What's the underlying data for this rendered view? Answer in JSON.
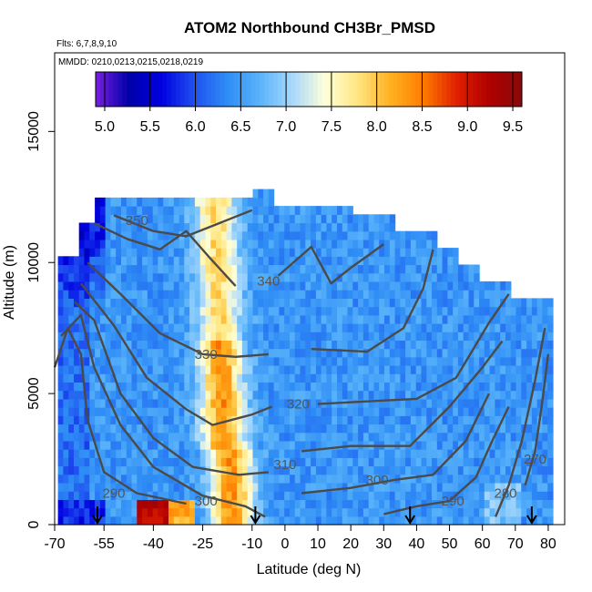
{
  "chart_data": {
    "type": "heatmap",
    "title": "ATOM2 Northbound CH3Br_PMSD",
    "notes": [
      "Flts: 6,7,8,9,10",
      "MMDD: 0210,0213,0215,0218,0219"
    ],
    "xlabel": "Latitude (deg N)",
    "ylabel": "Altitude (m)",
    "xlim": [
      -70,
      85
    ],
    "ylim": [
      0,
      18000
    ],
    "xticks": [
      -70,
      -55,
      -40,
      -25,
      -10,
      0,
      10,
      20,
      30,
      40,
      50,
      60,
      70,
      80
    ],
    "xtick_labels": [
      "-70",
      "-55",
      "-40",
      "-25",
      "-10",
      "0",
      "10",
      "20",
      "30",
      "40",
      "50",
      "60",
      "70",
      "80"
    ],
    "yticks": [
      0,
      5000,
      10000,
      15000
    ],
    "ytick_labels": [
      "0",
      "5000",
      "10000",
      "15000"
    ],
    "colorbar": {
      "range": [
        4.9,
        9.6
      ],
      "ticks": [
        5.0,
        5.5,
        6.0,
        6.5,
        7.0,
        7.5,
        8.0,
        8.5,
        9.0,
        9.5
      ],
      "tick_labels": [
        "5.0",
        "5.5",
        "6.0",
        "6.5",
        "7.0",
        "7.5",
        "8.0",
        "8.5",
        "9.0",
        "9.5"
      ],
      "colors": [
        "#7b1fe0",
        "#0000a8",
        "#0000e0",
        "#1f50f0",
        "#2e8cf5",
        "#59b3fa",
        "#a8d8fc",
        "#ffffd8",
        "#ffe680",
        "#ffb020",
        "#ff7c00",
        "#e02000",
        "#b00000",
        "#8a0a0a"
      ]
    },
    "field_description_centers": {
      "plume_lat": -18,
      "plume_max_value": 8.7
    },
    "contours": [
      {
        "label": "270",
        "points": [
          [
            73,
            1500
          ],
          [
            76,
            2800
          ],
          [
            78,
            4500
          ],
          [
            80,
            6500
          ]
        ]
      },
      {
        "label": "280",
        "points": [
          [
            64,
            300
          ],
          [
            68,
            1500
          ],
          [
            72,
            3200
          ],
          [
            76,
            5500
          ],
          [
            79,
            7500
          ]
        ]
      },
      {
        "label": "290",
        "points": [
          [
            -70,
            6000
          ],
          [
            -66,
            7500
          ],
          [
            -62,
            6500
          ],
          [
            -60,
            4000
          ],
          [
            -55,
            2000
          ],
          [
            -45,
            1200
          ],
          [
            -30,
            800
          ]
        ]
      },
      {
        "label": "290",
        "points": [
          [
            30,
            400
          ],
          [
            40,
            700
          ],
          [
            50,
            900
          ],
          [
            58,
            1800
          ],
          [
            63,
            3200
          ],
          [
            68,
            4500
          ]
        ]
      },
      {
        "label": "300",
        "points": [
          [
            -68,
            7200
          ],
          [
            -62,
            8000
          ],
          [
            -58,
            6000
          ],
          [
            -50,
            3800
          ],
          [
            -40,
            2200
          ],
          [
            -25,
            1100
          ],
          [
            -12,
            700
          ],
          [
            -6,
            300
          ]
        ]
      },
      {
        "label": "300",
        "points": [
          [
            5,
            1200
          ],
          [
            20,
            1400
          ],
          [
            33,
            1700
          ],
          [
            45,
            1900
          ],
          [
            55,
            3200
          ],
          [
            62,
            5000
          ]
        ]
      },
      {
        "label": "310",
        "points": [
          [
            -64,
            8500
          ],
          [
            -58,
            7800
          ],
          [
            -50,
            5000
          ],
          [
            -40,
            3300
          ],
          [
            -28,
            2200
          ],
          [
            -14,
            1900
          ],
          [
            -5,
            2000
          ]
        ]
      },
      {
        "label": "310",
        "points": [
          [
            5,
            2800
          ],
          [
            20,
            3000
          ],
          [
            38,
            3000
          ],
          [
            50,
            4500
          ],
          [
            60,
            6000
          ],
          [
            66,
            7000
          ]
        ]
      },
      {
        "label": "320",
        "points": [
          [
            -62,
            9200
          ],
          [
            -52,
            7600
          ],
          [
            -42,
            5600
          ],
          [
            -30,
            4400
          ],
          [
            -22,
            3800
          ],
          [
            -10,
            4200
          ],
          [
            -4,
            4500
          ]
        ]
      },
      {
        "label": "320",
        "points": [
          [
            10,
            4600
          ],
          [
            25,
            4700
          ],
          [
            40,
            4800
          ],
          [
            52,
            5600
          ],
          [
            62,
            7700
          ],
          [
            68,
            8800
          ]
        ]
      },
      {
        "label": "330",
        "points": [
          [
            -60,
            10000
          ],
          [
            -50,
            8800
          ],
          [
            -38,
            7300
          ],
          [
            -25,
            6500
          ],
          [
            -15,
            6400
          ],
          [
            -5,
            6500
          ]
        ]
      },
      {
        "label": "330",
        "points": [
          [
            8,
            6700
          ],
          [
            25,
            6600
          ],
          [
            36,
            7500
          ],
          [
            42,
            9000
          ],
          [
            45,
            10500
          ]
        ]
      },
      {
        "label": "340",
        "points": [
          [
            -58,
            11500
          ],
          [
            -48,
            10900
          ],
          [
            -38,
            10500
          ],
          [
            -30,
            11200
          ],
          [
            -23,
            10200
          ],
          [
            -15,
            9100
          ]
        ]
      },
      {
        "label": "340",
        "points": [
          [
            -2,
            9500
          ],
          [
            8,
            10600
          ],
          [
            14,
            9200
          ],
          [
            20,
            9800
          ],
          [
            30,
            10700
          ]
        ]
      },
      {
        "label": "350",
        "points": [
          [
            -52,
            11800
          ],
          [
            -40,
            11200
          ],
          [
            -30,
            11000
          ],
          [
            -20,
            11500
          ],
          [
            -10,
            12000
          ]
        ]
      }
    ],
    "contour_labels": [
      {
        "label": "350",
        "lat": -45,
        "alt": 11600
      },
      {
        "label": "340",
        "lat": -5,
        "alt": 9300
      },
      {
        "label": "330",
        "lat": -24,
        "alt": 6500
      },
      {
        "label": "320",
        "lat": 4,
        "alt": 4600
      },
      {
        "label": "310",
        "lat": 0,
        "alt": 2300
      },
      {
        "label": "300",
        "lat": -24,
        "alt": 900
      },
      {
        "label": "300",
        "lat": 28,
        "alt": 1700
      },
      {
        "label": "290",
        "lat": -52,
        "alt": 1200
      },
      {
        "label": "290",
        "lat": 51,
        "alt": 900
      },
      {
        "label": "280",
        "lat": 67,
        "alt": 1200
      },
      {
        "label": "270",
        "lat": 76,
        "alt": 2500
      }
    ],
    "flight_markers_lat": [
      -57,
      -9,
      38,
      75
    ]
  }
}
